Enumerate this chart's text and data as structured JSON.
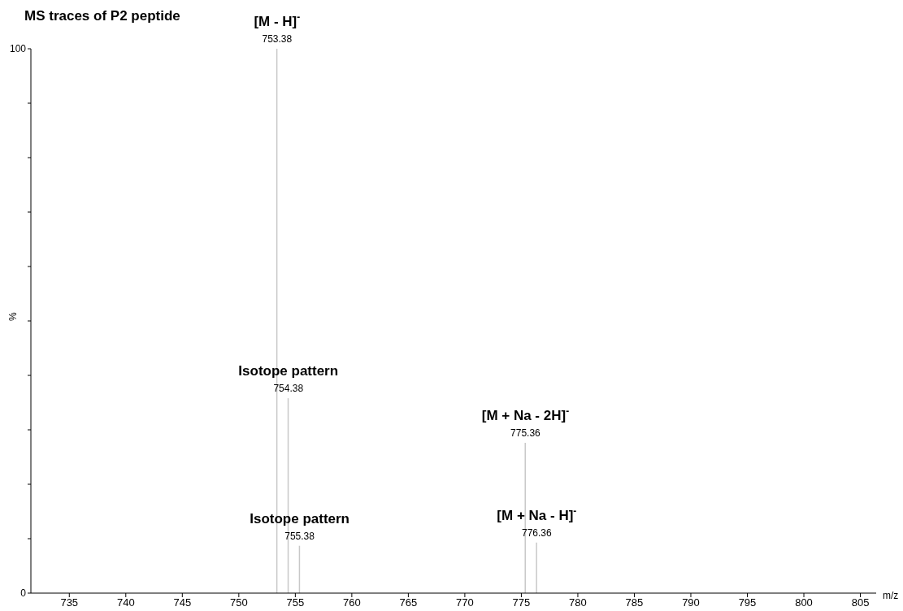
{
  "chart_data": {
    "type": "bar",
    "title": "MS traces of P2 peptide",
    "xlabel": "m/z",
    "ylabel": "%",
    "x": [
      753.38,
      754.38,
      755.38,
      775.36,
      776.36
    ],
    "values": [
      100,
      35.8,
      8.7,
      27.6,
      9.3
    ],
    "color": "#c8c8c8",
    "xlim": [
      731.6,
      806.4
    ],
    "xticks": [
      735,
      740,
      745,
      750,
      755,
      760,
      765,
      770,
      775,
      780,
      785,
      790,
      795,
      800,
      805
    ],
    "ylim": [
      0,
      100
    ],
    "yticks": [
      0,
      {
        "value": 10,
        "label": null
      },
      {
        "value": 20,
        "label": null
      },
      {
        "value": 30,
        "label": null
      },
      {
        "value": 40,
        "label": null
      },
      {
        "value": 50,
        "label": null
      },
      {
        "value": 60,
        "label": null
      },
      {
        "value": 70,
        "label": null
      },
      {
        "value": 80,
        "label": null
      },
      {
        "value": 90,
        "label": null
      },
      100
    ],
    "annotations": [
      {
        "text": "753.38",
        "x": 753.38,
        "y": 100
      },
      {
        "text": "754.38",
        "x": 754.38,
        "y": 35.8
      },
      {
        "text": "755.38",
        "x": 755.38,
        "y": 8.7
      },
      {
        "text": "775.36",
        "x": 775.36,
        "y": 27.6
      },
      {
        "text": "776.36",
        "x": 776.36,
        "y": 9.3
      },
      {
        "text": "[M - H]$^{-}$",
        "x": 753.38,
        "y": 100
      },
      {
        "text": "Isotope pattern",
        "x": 754.38,
        "y": 35.8
      },
      {
        "text": "Isotope pattern",
        "x": 755.38,
        "y": 8.7
      },
      {
        "text": "[M + Na - 2H]$^{-}$",
        "x": 775.36,
        "y": 27.6
      },
      {
        "text": "[M + Na - H]$^{-}$",
        "x": 776.36,
        "y": 9.3
      }
    ]
  }
}
